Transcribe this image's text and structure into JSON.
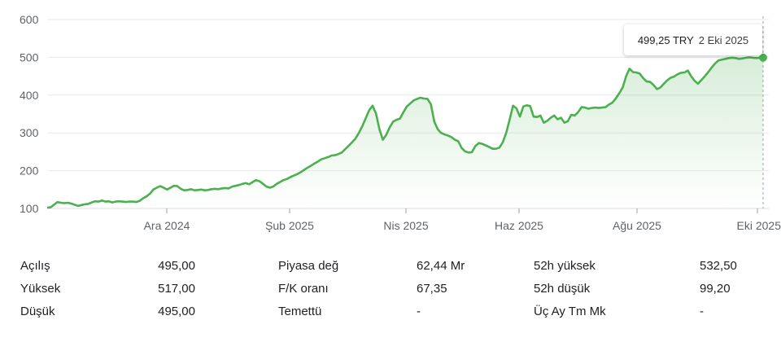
{
  "chart_data": {
    "type": "area",
    "title": "",
    "xlabel": "",
    "ylabel": "",
    "ylim": [
      100,
      600
    ],
    "yticks": [
      "100",
      "200",
      "300",
      "400",
      "500",
      "600"
    ],
    "xticks": [
      "Ara 2024",
      "Şub 2025",
      "Nis 2025",
      "Haz 2025",
      "Ağu 2025",
      "Eki 2025"
    ],
    "grid": true,
    "color": "#4caf50",
    "series": [
      {
        "values": [
          102,
          103,
          110,
          117,
          115,
          114,
          115,
          113,
          110,
          107,
          109,
          111,
          112,
          116,
          119,
          118,
          121,
          118,
          119,
          116,
          118,
          119,
          118,
          117,
          118,
          118,
          117,
          120,
          127,
          132,
          139,
          150,
          155,
          159,
          155,
          150,
          155,
          160,
          159,
          152,
          148,
          149,
          151,
          148,
          149,
          150,
          148,
          149,
          151,
          152,
          151,
          153,
          154,
          153,
          158,
          160,
          162,
          165,
          167,
          164,
          170,
          175,
          172,
          165,
          158,
          155,
          158,
          165,
          170,
          175,
          178,
          183,
          187,
          191,
          196,
          202,
          208,
          213,
          219,
          224,
          230,
          233,
          236,
          240,
          241,
          244,
          248,
          257,
          266,
          275,
          285,
          300,
          318,
          339,
          360,
          372,
          351,
          310,
          282,
          295,
          315,
          330,
          335,
          338,
          355,
          370,
          378,
          386,
          390,
          393,
          391,
          390,
          376,
          330,
          310,
          300,
          296,
          293,
          289,
          282,
          278,
          260,
          251,
          248,
          249,
          265,
          273,
          271,
          267,
          263,
          258,
          258,
          261,
          275,
          300,
          335,
          372,
          365,
          343,
          370,
          373,
          371,
          343,
          342,
          346,
          327,
          332,
          340,
          346,
          336,
          340,
          327,
          331,
          348,
          346,
          355,
          368,
          367,
          364,
          366,
          367,
          366,
          367,
          368,
          375,
          380,
          391,
          405,
          420,
          450,
          470,
          461,
          460,
          457,
          445,
          436,
          435,
          427,
          416,
          420,
          430,
          439,
          446,
          449,
          455,
          459,
          460,
          465,
          450,
          438,
          430,
          440,
          450,
          461,
          473,
          484,
          492,
          494,
          496,
          498,
          499,
          498,
          496,
          497,
          499,
          500,
          499,
          498,
          499,
          499.25
        ]
      }
    ],
    "last_price": "499,25 TRY",
    "last_date": "2 Eki 2025"
  },
  "stats": [
    {
      "label": "Açılış",
      "value": "495,00"
    },
    {
      "label": "Yüksek",
      "value": "517,00"
    },
    {
      "label": "Düşük",
      "value": "495,00"
    },
    {
      "label": "Piyasa değ",
      "value": "62,44 Mr"
    },
    {
      "label": "F/K oranı",
      "value": "67,35"
    },
    {
      "label": "Temettü",
      "value": "-"
    },
    {
      "label": "52h yüksek",
      "value": "532,50"
    },
    {
      "label": "52h düşük",
      "value": "99,20"
    },
    {
      "label": "Üç Ay Tm Mk",
      "value": "-"
    }
  ]
}
